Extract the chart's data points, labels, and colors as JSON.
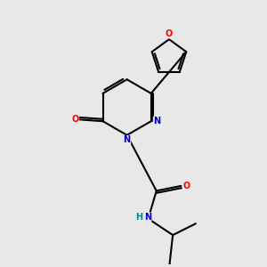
{
  "background_color": "#e8e8e8",
  "bond_color": "#000000",
  "bond_width": 1.5,
  "atom_colors": {
    "N": "#0000cc",
    "O": "#ff0000",
    "NH_H": "#008888",
    "C": "#000000"
  },
  "figsize": [
    3.0,
    3.0
  ],
  "dpi": 100
}
